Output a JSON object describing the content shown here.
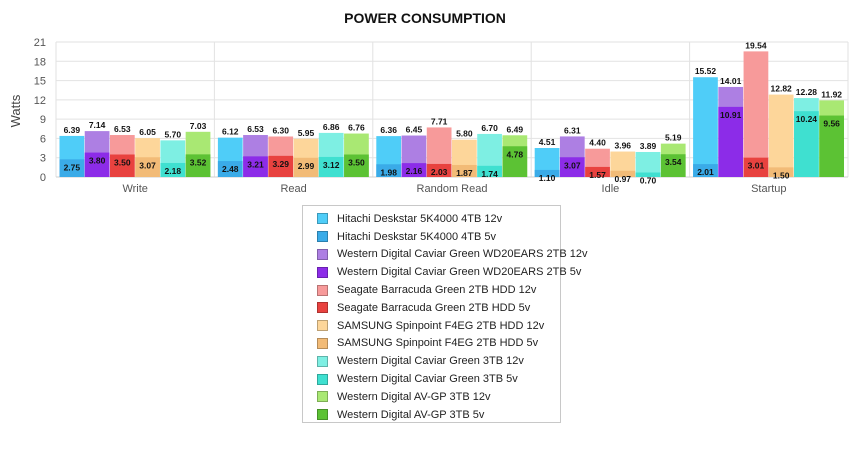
{
  "chart_data": {
    "type": "bar",
    "title": "POWER CONSUMPTION",
    "xlabel": "",
    "ylabel": "Watts",
    "ylim": [
      0,
      21
    ],
    "yticks": [
      0,
      3,
      6,
      9,
      12,
      15,
      18,
      21
    ],
    "grid": true,
    "legend_position": "bottom-center",
    "categories": [
      "Write",
      "Read",
      "Random Read",
      "Idle",
      "Startup"
    ],
    "series": [
      {
        "name": "Hitachi Deskstar 5K4000 4TB 12v",
        "color": "#4fcdf8",
        "values": [
          6.39,
          6.12,
          6.36,
          4.51,
          15.52
        ]
      },
      {
        "name": "Hitachi Deskstar 5K4000 4TB 5v",
        "color": "#3aabe8",
        "values": [
          2.75,
          2.48,
          1.98,
          1.1,
          2.01
        ]
      },
      {
        "name": "Western Digital Caviar Green WD20EARS 2TB 12v",
        "color": "#ad7fe3",
        "values": [
          7.14,
          6.53,
          6.45,
          6.31,
          14.01
        ]
      },
      {
        "name": "Western Digital Caviar Green WD20EARS 2TB 5v",
        "color": "#8c2ce8",
        "values": [
          3.8,
          3.21,
          2.16,
          3.07,
          10.91
        ]
      },
      {
        "name": "Seagate Barracuda Green 2TB HDD 12v",
        "color": "#f79a9a",
        "values": [
          6.53,
          6.3,
          7.71,
          4.4,
          19.54
        ]
      },
      {
        "name": "Seagate Barracuda Green 2TB HDD 5v",
        "color": "#e8423f",
        "values": [
          3.5,
          3.29,
          2.03,
          1.57,
          3.01
        ]
      },
      {
        "name": "SAMSUNG Spinpoint F4EG 2TB HDD 12v",
        "color": "#fdd69a",
        "values": [
          6.05,
          5.95,
          5.8,
          3.96,
          12.82
        ]
      },
      {
        "name": "SAMSUNG Spinpoint F4EG 2TB HDD 5v",
        "color": "#f2bb77",
        "values": [
          3.07,
          2.99,
          1.87,
          0.97,
          1.5
        ]
      },
      {
        "name": "Western Digital Caviar Green 3TB 12v",
        "color": "#7eefe3",
        "values": [
          5.7,
          6.86,
          6.7,
          3.89,
          12.28
        ]
      },
      {
        "name": "Western Digital Caviar Green 3TB 5v",
        "color": "#3fe0d0",
        "values": [
          2.18,
          3.12,
          1.74,
          0.7,
          10.24
        ]
      },
      {
        "name": "Western Digital AV-GP 3TB 12v",
        "color": "#a9e873",
        "values": [
          7.03,
          6.76,
          6.49,
          5.19,
          11.92
        ]
      },
      {
        "name": "Western Digital AV-GP 3TB 5v",
        "color": "#5cc234",
        "values": [
          3.52,
          3.5,
          4.78,
          3.54,
          9.56
        ]
      }
    ]
  }
}
